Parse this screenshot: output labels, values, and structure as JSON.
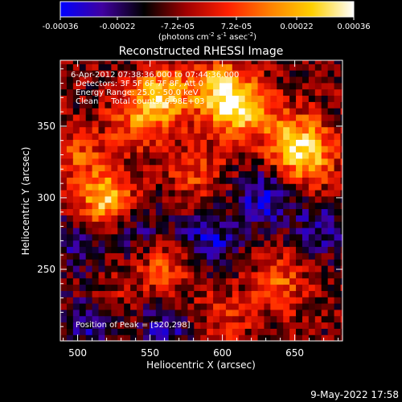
{
  "chart_data": {
    "type": "heatmap",
    "title": "Reconstructed RHESSI Image",
    "xlabel": "Heliocentric X (arcsec)",
    "ylabel": "Heliocentric Y (arcsec)",
    "xlim": [
      488,
      683
    ],
    "ylim": [
      200,
      396
    ],
    "xticks": [
      500,
      550,
      600,
      650
    ],
    "yticks": [
      250,
      300,
      350
    ],
    "colorbar": {
      "min": -0.00036,
      "max": 0.00036,
      "ticks": [
        "-0.00036",
        "-0.00022",
        "-7.2e-05",
        "7.2e-05",
        "0.00022",
        "0.00036"
      ],
      "unit_prefix": "(photons cm",
      "unit_exp1": "-2",
      "unit_mid": " s",
      "unit_exp2": "-1",
      "unit_mid2": " asec",
      "unit_exp3": "-2",
      "unit_suffix": ")",
      "colors": [
        "#0000ff",
        "#4000a0",
        "#000000",
        "#a00000",
        "#ff2000",
        "#ff8000",
        "#ffd000",
        "#ffffff"
      ]
    },
    "info_lines": [
      "6-Apr-2012 07:38:36.000 to 07:44:36.000",
      "Detectors: 3F 5F 6F 7F 8F, Att 0",
      "Energy Range: 25.0 - 50.0 keV",
      "Clean     Total counts: 6.98E+03"
    ],
    "peak_label": "Position of Peak = [520,298]",
    "peak": [
      520,
      298
    ],
    "hotspots": [
      {
        "x": 520,
        "y": 298,
        "v": 1.0
      },
      {
        "x": 560,
        "y": 372,
        "v": 0.9
      },
      {
        "x": 600,
        "y": 375,
        "v": 0.95
      },
      {
        "x": 615,
        "y": 360,
        "v": 0.8
      },
      {
        "x": 650,
        "y": 340,
        "v": 0.85
      },
      {
        "x": 660,
        "y": 325,
        "v": 0.6
      },
      {
        "x": 540,
        "y": 355,
        "v": 0.55
      },
      {
        "x": 500,
        "y": 330,
        "v": 0.45
      },
      {
        "x": 580,
        "y": 320,
        "v": 0.45
      },
      {
        "x": 560,
        "y": 250,
        "v": 0.5
      },
      {
        "x": 640,
        "y": 240,
        "v": 0.5
      },
      {
        "x": 600,
        "y": 215,
        "v": 0.35
      },
      {
        "x": 520,
        "y": 225,
        "v": 0.3
      }
    ],
    "coldspots": [
      {
        "x": 630,
        "y": 300,
        "v": -0.6
      },
      {
        "x": 590,
        "y": 270,
        "v": -0.55
      },
      {
        "x": 510,
        "y": 215,
        "v": -0.6
      },
      {
        "x": 540,
        "y": 280,
        "v": -0.4
      },
      {
        "x": 670,
        "y": 280,
        "v": -0.45
      },
      {
        "x": 500,
        "y": 270,
        "v": -0.4
      },
      {
        "x": 560,
        "y": 210,
        "v": -0.45
      }
    ]
  },
  "footer": {
    "timestamp": "9-May-2022 17:58"
  }
}
